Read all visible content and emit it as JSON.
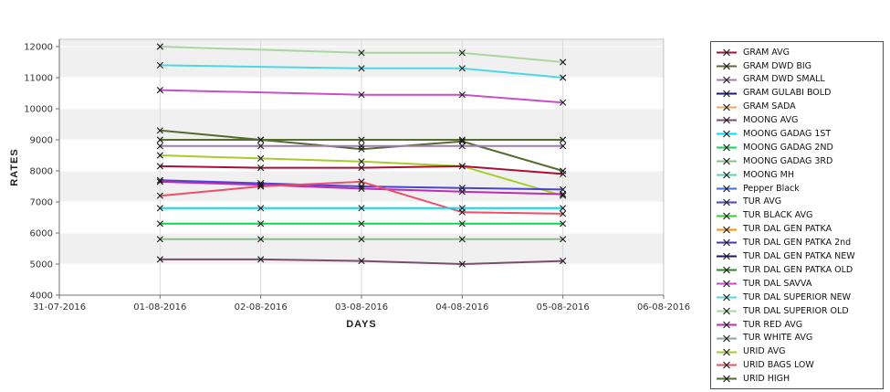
{
  "chart_data": {
    "type": "line",
    "title": "",
    "xlabel": "DAYS",
    "ylabel": "RATES",
    "x_tick_labels": [
      "31-07-2016",
      "01-08-2016",
      "02-08-2016",
      "03-08-2016",
      "04-08-2016",
      "05-08-2016",
      "06-08-2016"
    ],
    "y_ticks": [
      4000,
      5000,
      6000,
      7000,
      8000,
      9000,
      10000,
      11000,
      12000
    ],
    "ylim": [
      4000,
      12000
    ],
    "marker": "x",
    "grid": "alternating-horizontal-bands",
    "legend_position": "right",
    "plot_style": {
      "band_color": "#f0f0f0",
      "alt_band_color": "#ffffff",
      "vgrid_color": "#d9d9d9",
      "hgrid_color": "#ffffff",
      "border_color": "#c4c4c4",
      "axis_color": "#707070",
      "tick_label_color": "#333333",
      "marker_color": "#1a1a1a"
    },
    "series": [
      {
        "name": "TUR DAL SUPERIOR OLD",
        "color": "#aad6a0",
        "day_indices": [
          1,
          3,
          4,
          5
        ],
        "values": [
          12000,
          11800,
          11800,
          11500
        ]
      },
      {
        "name": "TUR DAL SUPERIOR NEW",
        "color": "#4cd8e2",
        "day_indices": [
          1,
          3,
          4,
          5
        ],
        "values": [
          11400,
          11300,
          11300,
          11000
        ]
      },
      {
        "name": "TUR DAL SAVVA",
        "color": "#c94fc9",
        "day_indices": [
          1,
          3,
          4,
          5
        ],
        "values": [
          10600,
          10450,
          10450,
          10200
        ]
      },
      {
        "name": "URID HIGH",
        "color": "#556b2f",
        "day_indices": [
          1,
          2,
          3,
          4,
          5
        ],
        "values": [
          9300,
          9000,
          8700,
          8950,
          8000
        ]
      },
      {
        "name": "GRAM DWD BIG",
        "color": "#556b2f",
        "day_indices": [
          1,
          2,
          3,
          4,
          5
        ],
        "values": [
          9000,
          9000,
          9000,
          9000,
          9000
        ]
      },
      {
        "name": "GRAM DWD SMALL",
        "color": "#9d7cb2",
        "day_indices": [
          1,
          2,
          3,
          4,
          5
        ],
        "values": [
          8800,
          8800,
          8800,
          8800,
          8800
        ]
      },
      {
        "name": "URID AVG",
        "color": "#a6cc2a",
        "day_indices": [
          1,
          2,
          3,
          4,
          5
        ],
        "values": [
          8500,
          8400,
          8300,
          8150,
          7200
        ]
      },
      {
        "name": "GRAM AVG",
        "color": "#ab0f32",
        "day_indices": [
          1,
          2,
          3,
          4,
          5
        ],
        "values": [
          8150,
          8100,
          8100,
          8150,
          7900
        ]
      },
      {
        "name": "TUR AVG",
        "color": "#4a43d4",
        "day_indices": [
          1,
          2,
          3,
          4,
          5
        ],
        "values": [
          7700,
          7600,
          7500,
          7450,
          7400
        ]
      },
      {
        "name": "TUR RED AVG",
        "color": "#bd2cb2",
        "day_indices": [
          1,
          2,
          3,
          4,
          5
        ],
        "values": [
          7650,
          7550,
          7430,
          7330,
          7250
        ]
      },
      {
        "name": "URID BAGS LOW",
        "color": "#ee4f68",
        "day_indices": [
          1,
          2,
          3,
          4,
          5
        ],
        "values": [
          7200,
          7500,
          7650,
          6670,
          6620
        ]
      },
      {
        "name": "MOONG GADAG 1ST",
        "color": "#00dcf0",
        "day_indices": [
          1,
          2,
          3,
          4,
          5
        ],
        "values": [
          6800,
          6800,
          6800,
          6800,
          6800
        ]
      },
      {
        "name": "MOONG GADAG 2ND",
        "color": "#0ed455",
        "day_indices": [
          1,
          2,
          3,
          4,
          5
        ],
        "values": [
          6300,
          6300,
          6300,
          6300,
          6300
        ]
      },
      {
        "name": "MOONG GADAG 3RD",
        "color": "#8fbc8f",
        "day_indices": [
          1,
          2,
          3,
          4,
          5
        ],
        "values": [
          5800,
          5800,
          5800,
          5800,
          5800
        ]
      },
      {
        "name": "MOONG AVG",
        "color": "#7b4c6e",
        "day_indices": [
          1,
          2,
          3,
          4,
          5
        ],
        "values": [
          5150,
          5150,
          5100,
          5000,
          5100
        ]
      }
    ],
    "legend": [
      {
        "label": "GRAM AVG",
        "color": "#ab0f32"
      },
      {
        "label": "GRAM DWD BIG",
        "color": "#556b2f"
      },
      {
        "label": "GRAM DWD SMALL",
        "color": "#9d7cb2"
      },
      {
        "label": "GRAM GULABI BOLD",
        "color": "#1b1b6f"
      },
      {
        "label": "GRAM SADA",
        "color": "#f4a460"
      },
      {
        "label": "MOONG AVG",
        "color": "#7b4c6e"
      },
      {
        "label": "MOONG GADAG 1ST",
        "color": "#00dcf0"
      },
      {
        "label": "MOONG GADAG 2ND",
        "color": "#0ed455"
      },
      {
        "label": "MOONG GADAG 3RD",
        "color": "#8fbc8f"
      },
      {
        "label": "MOONG MH",
        "color": "#55d6b0"
      },
      {
        "label": "Pepper Black",
        "color": "#4169e1"
      },
      {
        "label": "TUR AVG",
        "color": "#4a43d4"
      },
      {
        "label": "TUR BLACK AVG",
        "color": "#32cd32"
      },
      {
        "label": "TUR DAL GEN PATKA",
        "color": "#ff8c00"
      },
      {
        "label": "TUR DAL GEN PATKA 2nd",
        "color": "#4a35cc"
      },
      {
        "label": "TUR DAL GEN PATKA NEW",
        "color": "#1a1a5e"
      },
      {
        "label": "TUR DAL GEN PATKA OLD",
        "color": "#228b22"
      },
      {
        "label": "TUR DAL SAVVA",
        "color": "#c94fc9"
      },
      {
        "label": "TUR DAL SUPERIOR NEW",
        "color": "#4cd8e2"
      },
      {
        "label": "TUR DAL SUPERIOR OLD",
        "color": "#aad6a0"
      },
      {
        "label": "TUR RED AVG",
        "color": "#bd2cb2"
      },
      {
        "label": "TUR WHITE AVG",
        "color": "#95a5a6"
      },
      {
        "label": "URID AVG",
        "color": "#a6cc2a"
      },
      {
        "label": "URID BAGS LOW",
        "color": "#ee4f68"
      },
      {
        "label": "URID HIGH",
        "color": "#556b2f"
      }
    ]
  }
}
